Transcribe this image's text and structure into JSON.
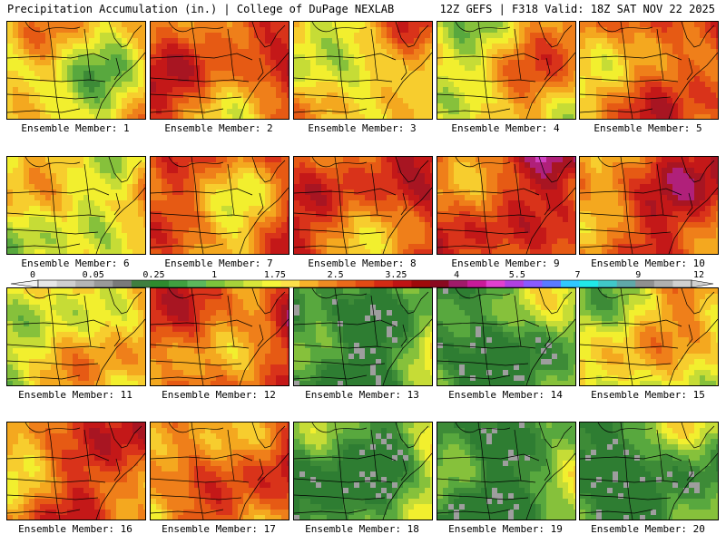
{
  "header": {
    "left": "Precipitation Accumulation (in.) | College of DuPage NEXLAB",
    "right": "12Z GEFS | F318 Valid: 18Z SAT NOV 22 2025"
  },
  "caption_prefix": "Ensemble Member: ",
  "members": [
    {
      "label": "Ensemble Member: 1",
      "regime": "wet",
      "bias": 0.0
    },
    {
      "label": "Ensemble Member: 2",
      "regime": "heavy",
      "bias": 1.4
    },
    {
      "label": "Ensemble Member: 3",
      "regime": "wet",
      "bias": 0.3
    },
    {
      "label": "Ensemble Member: 4",
      "regime": "wet",
      "bias": 0.8
    },
    {
      "label": "Ensemble Member: 5",
      "regime": "heavy",
      "bias": 1.0
    },
    {
      "label": "Ensemble Member: 6",
      "regime": "wet",
      "bias": 0.2
    },
    {
      "label": "Ensemble Member: 7",
      "regime": "heavy",
      "bias": 0.6
    },
    {
      "label": "Ensemble Member: 8",
      "regime": "heavy",
      "bias": 1.6
    },
    {
      "label": "Ensemble Member: 9",
      "regime": "heavy",
      "bias": 2.0
    },
    {
      "label": "Ensemble Member: 10",
      "regime": "heavy",
      "bias": 1.9
    },
    {
      "label": "Ensemble Member: 11",
      "regime": "wet",
      "bias": 0.4
    },
    {
      "label": "Ensemble Member: 12",
      "regime": "heavy",
      "bias": 1.5
    },
    {
      "label": "Ensemble Member: 13",
      "regime": "dry",
      "bias": -0.6
    },
    {
      "label": "Ensemble Member: 14",
      "regime": "dry",
      "bias": -0.4
    },
    {
      "label": "Ensemble Member: 15",
      "regime": "wet",
      "bias": 0.1
    },
    {
      "label": "Ensemble Member: 16",
      "regime": "heavy",
      "bias": 1.3
    },
    {
      "label": "Ensemble Member: 17",
      "regime": "heavy",
      "bias": 1.1
    },
    {
      "label": "Ensemble Member: 18",
      "regime": "dry",
      "bias": -0.3
    },
    {
      "label": "Ensemble Member: 19",
      "regime": "dry",
      "bias": -0.5
    },
    {
      "label": "Ensemble Member: 20",
      "regime": "dry",
      "bias": -0.7
    }
  ],
  "colorbar": {
    "tick_labels": [
      "0",
      "0.05",
      "0.25",
      "1",
      "1.75",
      "2.5",
      "3.25",
      "4",
      "5.5",
      "7",
      "9",
      "12"
    ],
    "colors": [
      "#e6e6e6",
      "#cfcfcf",
      "#b5b5b5",
      "#9a9a9a",
      "#7a7a7a",
      "#3f7f3f",
      "#2e8b2e",
      "#40a040",
      "#5cb85c",
      "#7cc43c",
      "#a6d23a",
      "#d7e63a",
      "#f5f53a",
      "#fde04a",
      "#f8b22a",
      "#f08a22",
      "#ea6a1a",
      "#e24a14",
      "#d42a14",
      "#c01414",
      "#a00a0a",
      "#8a0a20",
      "#a01a6a",
      "#c81a9a",
      "#e040d0",
      "#b040e0",
      "#8a5aff",
      "#5a7aff",
      "#30c8ff",
      "#20e8e8",
      "#40c8c8",
      "#60a8a8",
      "#909090",
      "#b0b0b0",
      "#d0d0d0"
    ]
  },
  "map_palette": [
    "#2e7d32",
    "#3d8b37",
    "#58a83e",
    "#86c13b",
    "#c6dc36",
    "#f2ef2e",
    "#f7cd2e",
    "#f4a81f",
    "#ef7f1a",
    "#e65a14",
    "#d9331a",
    "#c41818",
    "#a81522",
    "#b0207a",
    "#d040c0",
    "#9a5af0",
    "#50c8f0",
    "#9e9e9e"
  ]
}
